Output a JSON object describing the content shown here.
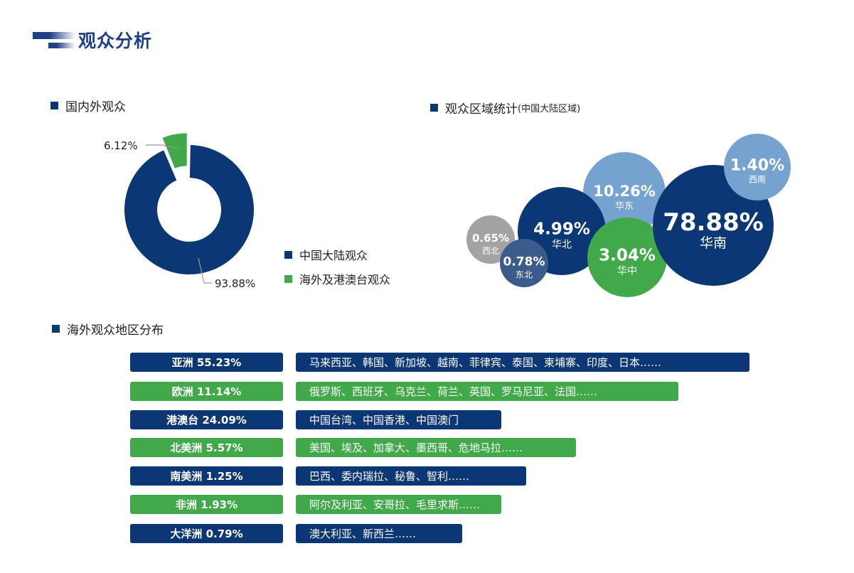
{
  "page_title": "观众分析",
  "colors": {
    "navy": "#0c3775",
    "green": "#41a94a",
    "light_blue": "#75a2cf",
    "gray": "#a3a3a3",
    "slate": "#3b5b8a"
  },
  "chart_data": [
    {
      "type": "pie",
      "style": "donut",
      "title": "国内外观众",
      "slices": [
        {
          "name": "中国大陆观众",
          "value": 93.88,
          "label": "93.88%",
          "color": "#0c3775"
        },
        {
          "name": "海外及港澳台观众",
          "value": 6.12,
          "label": "6.12%",
          "color": "#41a94a",
          "exploded": true
        }
      ],
      "legend_placement": "bottom-right"
    },
    {
      "type": "bubble",
      "title": "观众区域统计",
      "subtitle": "(中国大陆区域)",
      "bubbles": [
        {
          "name": "华东",
          "value": 10.26,
          "label": "10.26%",
          "color": "#75a2cf"
        },
        {
          "name": "西北",
          "value": 0.65,
          "label": "0.65%",
          "color": "#a3a3a3"
        },
        {
          "name": "华北",
          "value": 4.99,
          "label": "4.99%",
          "color": "#0c3775"
        },
        {
          "name": "东北",
          "value": 0.78,
          "label": "0.78%",
          "color": "#3b5b8a"
        },
        {
          "name": "华中",
          "value": 3.04,
          "label": "3.04%",
          "color": "#41a94a"
        },
        {
          "name": "华南",
          "value": 78.88,
          "label": "78.88%",
          "color": "#0c3775"
        },
        {
          "name": "西南",
          "value": 1.4,
          "label": "1.40%",
          "color": "#75a2cf"
        }
      ]
    },
    {
      "type": "table",
      "title": "海外观众地区分布",
      "rows": [
        {
          "label": "亚洲  55.23%",
          "detail": "马来西亚、韩国、新加坡、越南、菲律宾、泰国、柬埔寨、印度、日本……",
          "color": "#0c3775"
        },
        {
          "label": "欧洲  11.14%",
          "detail": "俄罗斯、西班牙、乌克兰、荷兰、英国、罗马尼亚、法国……",
          "color": "#41a94a"
        },
        {
          "label": "港澳台 24.09%",
          "detail": "中国台湾、中国香港、中国澳门",
          "color": "#0c3775"
        },
        {
          "label": "北美洲 5.57%",
          "detail": "美国、埃及、加拿大、墨西哥、危地马拉……",
          "color": "#41a94a"
        },
        {
          "label": "南美洲 1.25%",
          "detail": "巴西、委内瑞拉、秘鲁、智利……",
          "color": "#0c3775"
        },
        {
          "label": "非洲  1.93%",
          "detail": "阿尔及利亚、安哥拉、毛里求斯……",
          "color": "#41a94a"
        },
        {
          "label": "大洋洲 0.79%",
          "detail": "澳大利亚、新西兰……",
          "color": "#0c3775"
        }
      ]
    }
  ]
}
